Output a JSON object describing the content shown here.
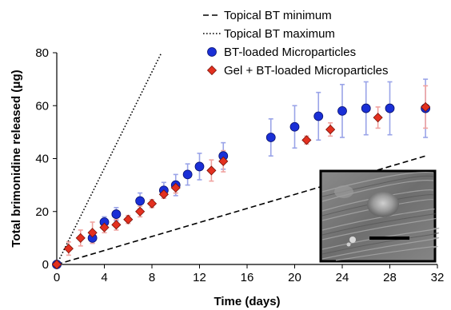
{
  "chart_data": {
    "type": "scatter",
    "xlabel": "Time (days)",
    "ylabel": "Total brimonidine released (μg)",
    "xlim": [
      0,
      32
    ],
    "ylim": [
      0,
      80
    ],
    "xticks": [
      0,
      4,
      8,
      12,
      16,
      20,
      24,
      28,
      32
    ],
    "yticks": [
      0,
      20,
      40,
      60,
      80
    ],
    "grid": false,
    "legend_position": "top-right",
    "lines": [
      {
        "name": "Topical BT minimum",
        "style": "dashed",
        "color": "#000000",
        "x": [
          0,
          31
        ],
        "y": [
          0,
          41
        ]
      },
      {
        "name": "Topical BT maximum",
        "style": "dotted",
        "color": "#000000",
        "x": [
          0,
          8.8
        ],
        "y": [
          0,
          80
        ]
      }
    ],
    "series": [
      {
        "name": "BT-loaded Microparticles",
        "marker": "circle",
        "color": "#1a2fd6",
        "error_color": "#9aa4e8",
        "x": [
          0,
          3,
          4,
          5,
          7,
          9,
          10,
          11,
          12,
          14,
          18,
          20,
          22,
          24,
          26,
          28,
          31
        ],
        "y": [
          0,
          10,
          16,
          19,
          24,
          28,
          30,
          34,
          37,
          41,
          48,
          52,
          56,
          58,
          59,
          59,
          59
        ],
        "err": [
          0,
          2,
          2,
          2.5,
          3,
          3,
          4,
          4,
          5,
          5,
          7,
          8,
          9,
          10,
          10,
          10,
          11
        ]
      },
      {
        "name": "Gel + BT-loaded Microparticles",
        "marker": "diamond",
        "color": "#e3301f",
        "error_color": "#f0a3a0",
        "x": [
          0,
          1,
          2,
          3,
          4,
          5,
          6,
          7,
          8,
          9,
          10,
          13,
          14,
          21,
          23,
          27,
          31
        ],
        "y": [
          0,
          6,
          10,
          12,
          14,
          15,
          17,
          20,
          23,
          26.5,
          29,
          35.5,
          39,
          47,
          51,
          55.5,
          59.5
        ],
        "err": [
          0,
          2.5,
          3,
          4,
          2,
          2,
          1.5,
          2,
          1.5,
          1.5,
          2,
          4,
          4,
          1.5,
          2.5,
          4,
          8
        ]
      }
    ]
  },
  "inset": {
    "description_icon": "sem-micrograph-image"
  }
}
